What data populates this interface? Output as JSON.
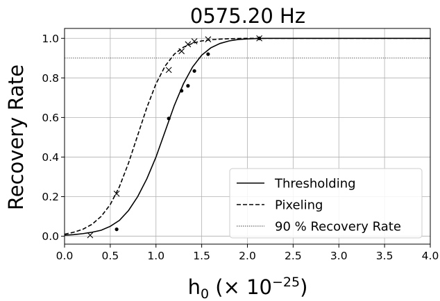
{
  "chart_data": {
    "type": "line",
    "title": "0575.20 Hz",
    "xlabel": {
      "base": "h",
      "sub": "0",
      "mid": " (× 10",
      "sup": "−25",
      "end": ")"
    },
    "ylabel": "Recovery Rate",
    "xlim": [
      0.0,
      4.0
    ],
    "ylim": [
      -0.04,
      1.05
    ],
    "xticks": [
      "0.0",
      "0.5",
      "1.0",
      "1.5",
      "2.0",
      "2.5",
      "3.0",
      "3.5",
      "4.0"
    ],
    "yticks": [
      "0.0",
      "0.2",
      "0.4",
      "0.6",
      "0.8",
      "1.0"
    ],
    "grid": true,
    "legend_position": "lower-right",
    "series": [
      {
        "name": "Thresholding",
        "style": "solid",
        "marker": "dot",
        "x": [
          0.0,
          0.1,
          0.2,
          0.3,
          0.4,
          0.5,
          0.6,
          0.7,
          0.8,
          0.9,
          1.0,
          1.1,
          1.2,
          1.3,
          1.4,
          1.5,
          1.6,
          1.7,
          1.8,
          1.9,
          2.0,
          2.1,
          2.2,
          2.4,
          2.6,
          3.0,
          4.0
        ],
        "y": [
          0.005,
          0.008,
          0.013,
          0.02,
          0.03,
          0.05,
          0.08,
          0.13,
          0.2,
          0.29,
          0.4,
          0.53,
          0.66,
          0.77,
          0.855,
          0.915,
          0.952,
          0.974,
          0.987,
          0.994,
          0.997,
          0.999,
          1.0,
          1.0,
          1.0,
          1.0,
          1.0
        ],
        "points_x": [
          0.57,
          1.14,
          1.28,
          1.35,
          1.42,
          1.57,
          2.13
        ],
        "points_y": [
          0.035,
          0.595,
          0.735,
          0.76,
          0.835,
          0.92,
          1.0
        ]
      },
      {
        "name": "Pixeling",
        "style": "dashed",
        "marker": "x",
        "x": [
          0.0,
          0.1,
          0.2,
          0.3,
          0.4,
          0.5,
          0.6,
          0.7,
          0.8,
          0.9,
          1.0,
          1.1,
          1.2,
          1.3,
          1.4,
          1.5,
          1.6,
          1.7,
          1.8,
          1.9,
          2.0,
          2.2,
          2.5,
          3.0,
          4.0
        ],
        "y": [
          0.01,
          0.02,
          0.035,
          0.06,
          0.1,
          0.16,
          0.25,
          0.37,
          0.51,
          0.65,
          0.77,
          0.86,
          0.92,
          0.955,
          0.975,
          0.987,
          0.993,
          0.996,
          0.998,
          0.999,
          1.0,
          1.0,
          1.0,
          1.0,
          1.0
        ],
        "points_x": [
          0.28,
          0.57,
          1.14,
          1.28,
          1.35,
          1.42,
          1.57,
          2.13
        ],
        "points_y": [
          0.005,
          0.215,
          0.84,
          0.935,
          0.97,
          0.985,
          0.995,
          1.0
        ]
      },
      {
        "name": "90 % Recovery Rate",
        "style": "dotted",
        "marker": "none",
        "x": [
          0.0,
          4.0
        ],
        "y": [
          0.9,
          0.9
        ]
      }
    ]
  }
}
